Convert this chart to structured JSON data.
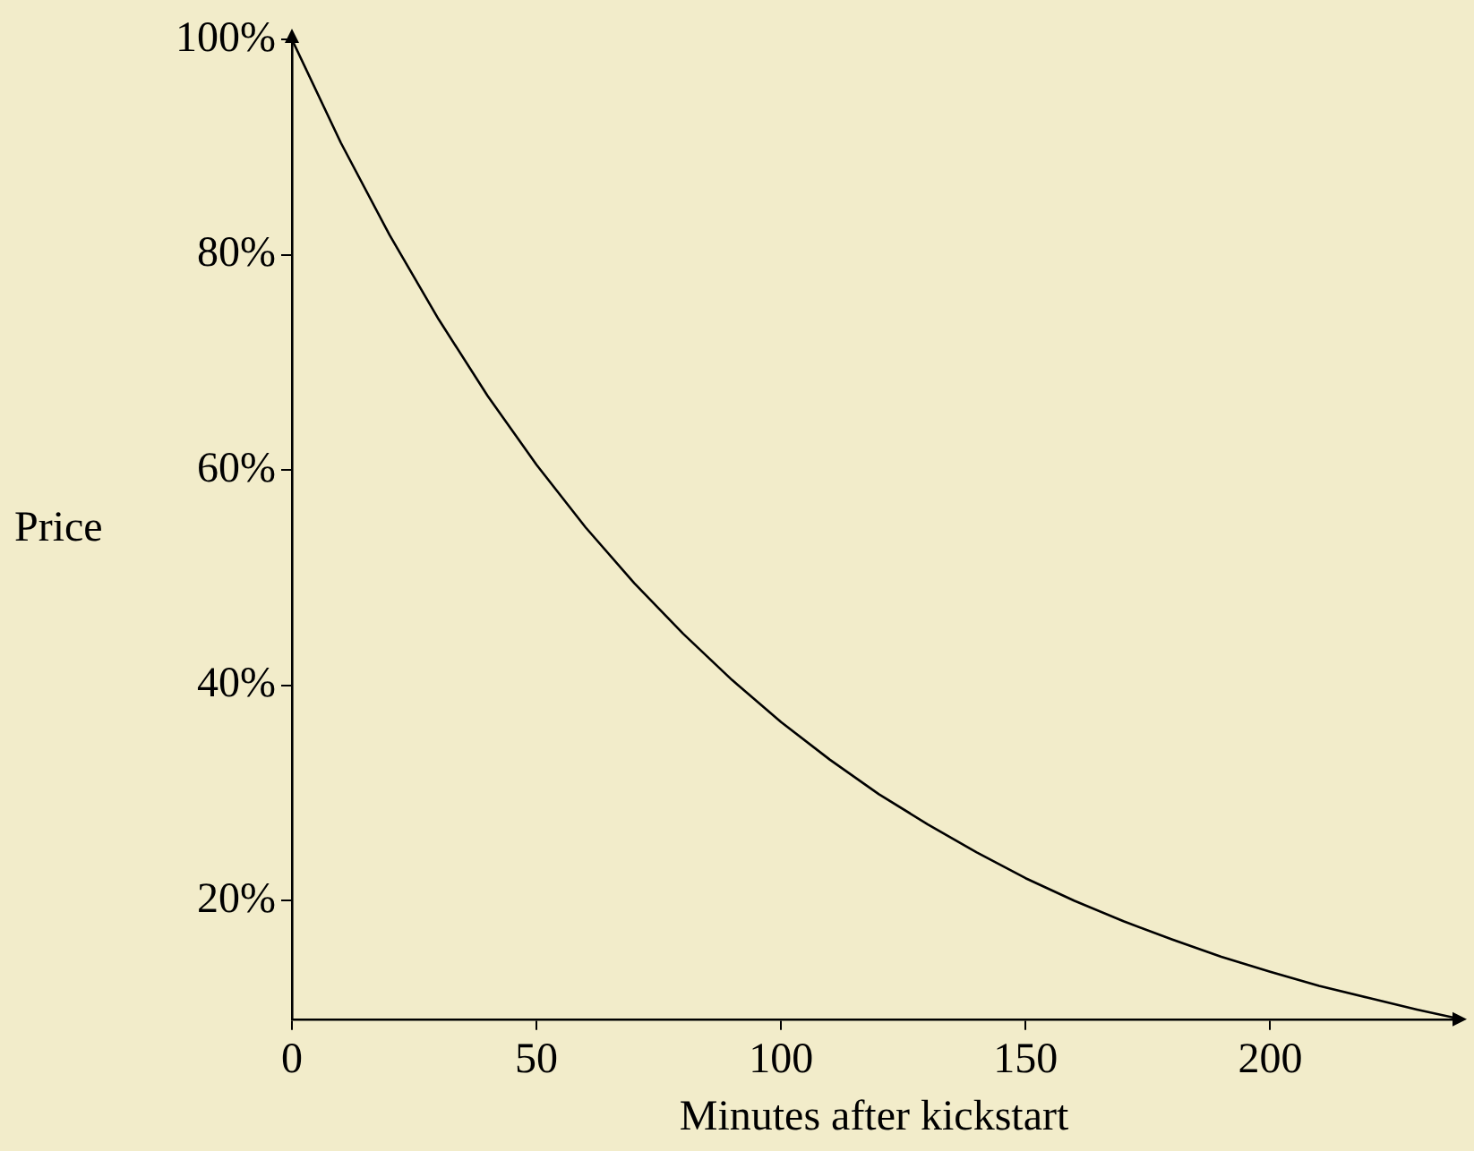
{
  "chart_data": {
    "type": "line",
    "xlabel": "Minutes after kickstart",
    "ylabel": "Price",
    "series": [
      {
        "color": "#000000",
        "x": [
          0,
          10,
          20,
          30,
          40,
          50,
          60,
          70,
          80,
          90,
          100,
          110,
          120,
          130,
          140,
          150,
          160,
          170,
          180,
          190,
          200,
          210,
          220,
          230,
          238
        ],
        "values": [
          100,
          90.4,
          81.8,
          74,
          66.9,
          60.5,
          54.7,
          49.5,
          44.8,
          40.5,
          36.6,
          33.1,
          29.9,
          27.1,
          24.5,
          22.1,
          20,
          18.1,
          16.4,
          14.8,
          13.4,
          12.1,
          11,
          9.9,
          9.1
        ]
      }
    ],
    "xlim": [
      0,
      238
    ],
    "ylim": [
      9,
      100
    ],
    "xticks": [
      0,
      50,
      100,
      150,
      200
    ],
    "yticks": [
      {
        "value": 20,
        "label": "20%"
      },
      {
        "value": 40,
        "label": "40%"
      },
      {
        "value": 60,
        "label": "60%"
      },
      {
        "value": 80,
        "label": "80%"
      },
      {
        "value": 100,
        "label": "100%"
      }
    ],
    "grid": false,
    "legend": false,
    "marker": "none",
    "line_style": "solid"
  }
}
